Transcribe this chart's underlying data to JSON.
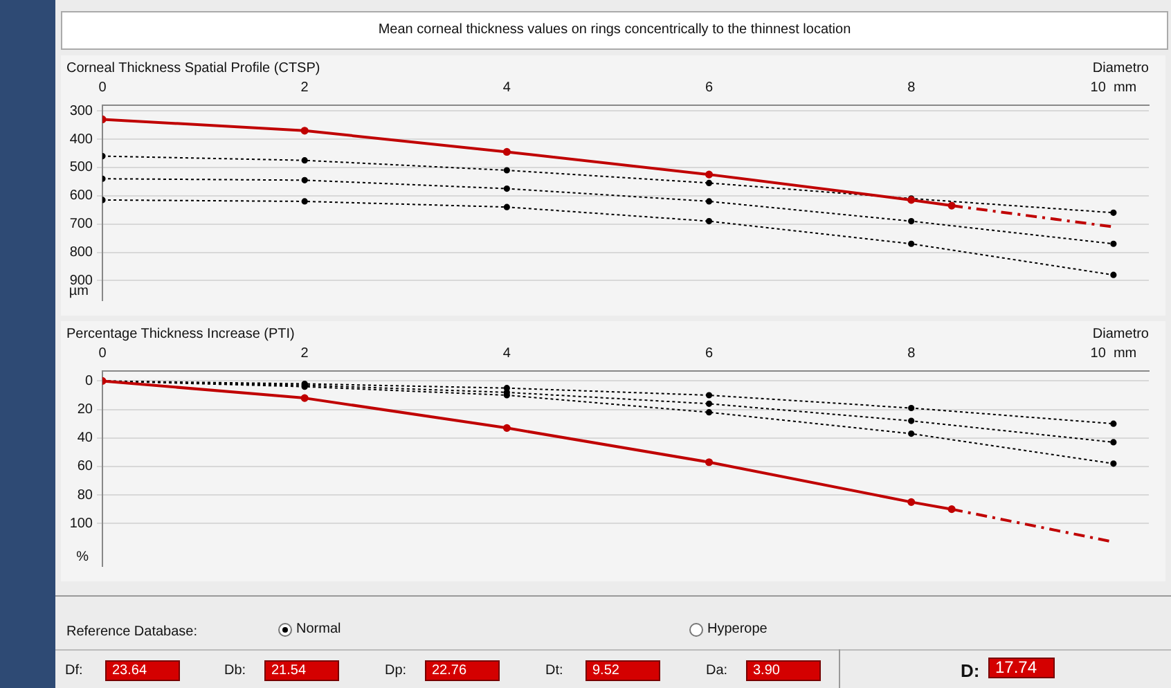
{
  "chart_data": [
    {
      "type": "line",
      "title": "Mean corneal thickness values on rings concentrically to the thinnest location",
      "subtitle": "Corneal Thickness Spatial Profile (CTSP)",
      "xlabel": "Diametro",
      "ylabel": "µm",
      "xlim": [
        0,
        10.35
      ],
      "xticks": [
        0,
        2,
        4,
        6,
        8,
        {
          "value": 10,
          "label": "10  mm"
        }
      ],
      "ylim": [
        970,
        280
      ],
      "yticks": [
        300,
        400,
        500,
        600,
        700,
        800,
        900
      ],
      "grid": "y",
      "series": [
        {
          "color": "#000000",
          "line_style": "dotted",
          "marker": "circle",
          "x": [
            0,
            2,
            4,
            6,
            8,
            10
          ],
          "values": [
            460,
            475,
            510,
            555,
            610,
            660
          ]
        },
        {
          "color": "#000000",
          "line_style": "dotted",
          "marker": "circle",
          "x": [
            0,
            2,
            4,
            6,
            8,
            10
          ],
          "values": [
            540,
            545,
            575,
            620,
            690,
            770
          ]
        },
        {
          "color": "#000000",
          "line_style": "dotted",
          "marker": "circle",
          "x": [
            0,
            2,
            4,
            6,
            8,
            10
          ],
          "values": [
            615,
            620,
            640,
            690,
            770,
            880
          ]
        },
        {
          "color": "#c00000",
          "line_style": "solid",
          "marker": "circle",
          "x": [
            0,
            2,
            4,
            6,
            8,
            8.4
          ],
          "values": [
            330,
            370,
            445,
            525,
            615,
            635
          ]
        },
        {
          "color": "#c00000",
          "line_style": "dashed",
          "marker": "none",
          "x": [
            8.4,
            10
          ],
          "values": [
            635,
            710
          ]
        }
      ]
    },
    {
      "type": "line",
      "title": "Percentage Thickness Increase (PTI)",
      "xlabel": "Diametro",
      "ylabel": "%",
      "xlim": [
        0,
        10.35
      ],
      "xticks": [
        0,
        2,
        4,
        6,
        8,
        {
          "value": 10,
          "label": "10  mm"
        }
      ],
      "ylim": [
        130,
        -7
      ],
      "yticks": [
        0,
        20,
        40,
        60,
        80,
        100
      ],
      "grid": "y",
      "series": [
        {
          "color": "#000000",
          "line_style": "dotted",
          "marker": "circle",
          "x": [
            0,
            2,
            4,
            6,
            8,
            10
          ],
          "values": [
            0,
            2,
            5,
            10,
            19,
            30
          ]
        },
        {
          "color": "#000000",
          "line_style": "dotted",
          "marker": "circle",
          "x": [
            0,
            2,
            4,
            6,
            8,
            10
          ],
          "values": [
            0,
            3,
            8,
            16,
            28,
            43
          ]
        },
        {
          "color": "#000000",
          "line_style": "dotted",
          "marker": "circle",
          "x": [
            0,
            2,
            4,
            6,
            8,
            10
          ],
          "values": [
            0,
            4,
            10,
            22,
            37,
            58
          ]
        },
        {
          "color": "#c00000",
          "line_style": "solid",
          "marker": "circle",
          "x": [
            0,
            2,
            4,
            6,
            8,
            8.4
          ],
          "values": [
            0,
            12,
            33,
            57,
            85,
            90
          ]
        },
        {
          "color": "#c00000",
          "line_style": "dashed",
          "marker": "none",
          "x": [
            8.4,
            10
          ],
          "values": [
            90,
            113
          ]
        }
      ]
    },
    {
      "type": "other",
      "annotations": [
        "Reference Database:",
        "Normal",
        "Hyperope",
        "Df:",
        "23.64",
        "Db:",
        "21.54",
        "Dp:",
        "22.76",
        "Dt:",
        "9.52",
        "Da:",
        "3.90",
        "D:",
        "17.74"
      ]
    }
  ]
}
